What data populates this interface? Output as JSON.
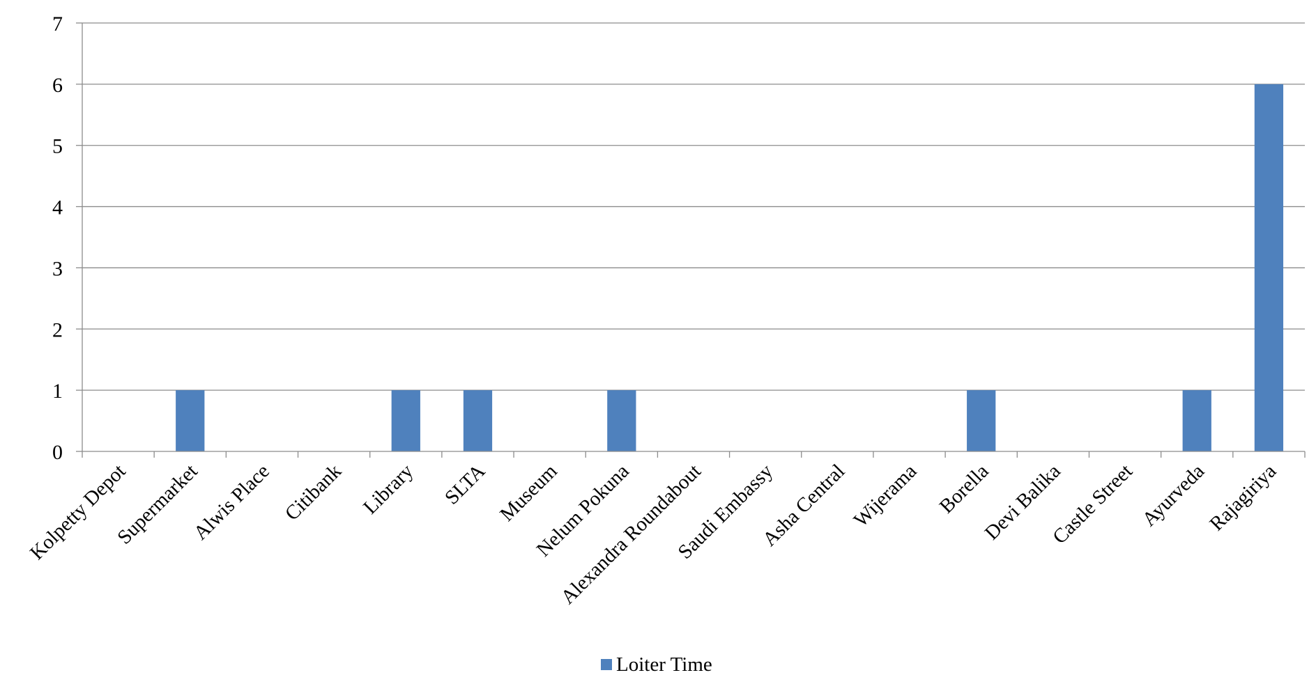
{
  "chart_data": {
    "type": "bar",
    "categories": [
      "Kolpetty Depot",
      "Supermarket",
      "Alwis Place",
      "Citibank",
      "Library",
      "SLTA",
      "Museum",
      "Nelum Pokuna",
      "Alexandra Roundabout",
      "Saudi Embassy",
      "Asha Central",
      "Wijerama",
      "Borella",
      "Devi Balika",
      "Castle Street",
      "Ayurveda",
      "Rajagiriya"
    ],
    "series": [
      {
        "name": "Loiter Time",
        "values": [
          0,
          1,
          0,
          0,
          1,
          1,
          0,
          1,
          0,
          0,
          0,
          0,
          1,
          0,
          0,
          1,
          6
        ],
        "color": "#4F81BD"
      }
    ],
    "title": "",
    "xlabel": "",
    "ylabel": "",
    "ylim": [
      0,
      7
    ],
    "yticks": [
      0,
      1,
      2,
      3,
      4,
      5,
      6,
      7
    ],
    "grid": true,
    "legend_position": "bottom"
  }
}
